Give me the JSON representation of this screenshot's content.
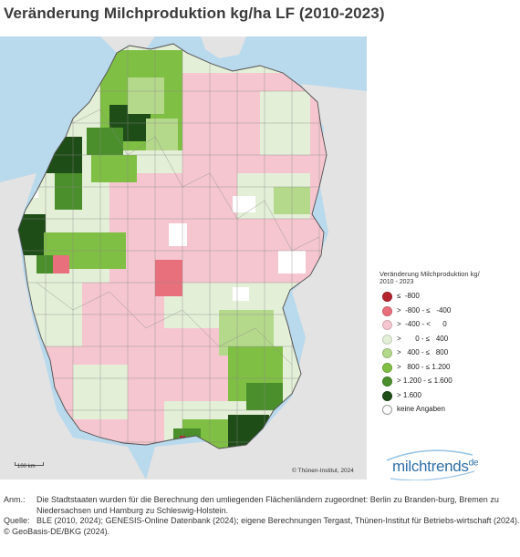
{
  "title": "Veränderung Milchproduktion kg/ha LF (2010-2023)",
  "map": {
    "scalebar_label": "100 km",
    "copyright": "© Thünen-Institut, 2024"
  },
  "legend": {
    "title": "Veränderung Milchproduktion kg/",
    "subtitle": "2010 - 2023",
    "items": [
      {
        "label": "≤  -800",
        "color": "#b4242f"
      },
      {
        "label": ">  -800 - ≤   -400",
        "color": "#e8707c"
      },
      {
        "label": ">  -400 - <      0",
        "color": "#f5c6cf"
      },
      {
        "label": ">       0 - ≤   400",
        "color": "#e4efd7"
      },
      {
        "label": ">   400 - ≤   800",
        "color": "#b4d98b"
      },
      {
        "label": ">   800 - ≤ 1.200",
        "color": "#7fbf43"
      },
      {
        "label": "> 1.200 - ≤ 1.600",
        "color": "#4a8f2c"
      },
      {
        "label": "> 1.600",
        "color": "#1f4d17"
      },
      {
        "label": "keine Angaben",
        "color": "#ffffff"
      }
    ]
  },
  "logo": {
    "text": "milchtrends",
    "suffix": "de"
  },
  "notes": {
    "anm_key": "Anm.:",
    "anm_text": "Die Stadtstaaten wurden für die Berechnung den umliegenden Flächenländern zugeordnet: Berlin zu Branden-burg, Bremen zu Niedersachsen und Hamburg zu Schleswig-Holstein.",
    "quelle_key": "Quelle:",
    "quelle_text": "BLE (2010, 2024); GENESIS-Online Datenbank (2024); eigene Berechnungen Tergast, Thünen-Institut für Betriebs-wirtschaft (2024).",
    "copyright": "© GeoBasis-DE/BKG (2024)."
  }
}
